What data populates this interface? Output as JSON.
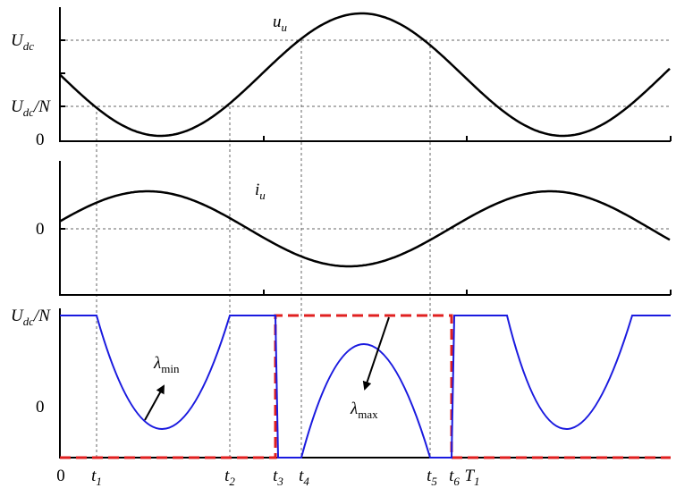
{
  "top_panel": {
    "y_labels": [
      {
        "main": "U",
        "sub": "dc"
      },
      {
        "main": "U",
        "sub": "dc",
        "suffix": "/N"
      },
      "0"
    ],
    "curve_label": {
      "main": "u",
      "sub": "u"
    }
  },
  "middle_panel": {
    "y_labels": [
      "0"
    ],
    "curve_label": {
      "main": "i",
      "sub": "u"
    }
  },
  "bottom_panel": {
    "y_labels": [
      {
        "main": "U",
        "sub": "dc",
        "suffix": "/N"
      },
      "0"
    ],
    "lambda_min": {
      "main": "λ",
      "sub": "min"
    },
    "lambda_max": {
      "main": "λ",
      "sub": "max"
    }
  },
  "time_labels": [
    "0",
    {
      "main": "t",
      "sub": "1"
    },
    {
      "main": "t",
      "sub": "2"
    },
    {
      "main": "t",
      "sub": "3"
    },
    {
      "main": "t",
      "sub": "4"
    },
    {
      "main": "t",
      "sub": "5"
    },
    {
      "main": "t",
      "sub": "6"
    },
    {
      "main": "T",
      "sub": "1"
    }
  ]
}
